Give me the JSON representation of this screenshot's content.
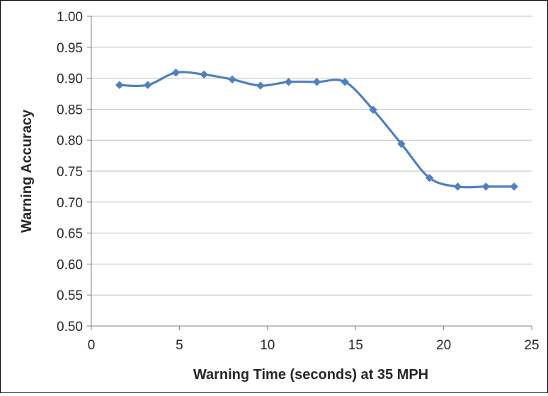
{
  "chart_data": {
    "type": "line",
    "title": "",
    "xlabel": "Warning Time (seconds) at 35 MPH",
    "ylabel": "Warning Accuracy",
    "xlim": [
      0,
      25
    ],
    "ylim": [
      0.5,
      1.0
    ],
    "x_ticks": [
      "0",
      "5",
      "10",
      "15",
      "20",
      "25"
    ],
    "y_ticks": [
      "0.50",
      "0.55",
      "0.60",
      "0.65",
      "0.70",
      "0.75",
      "0.80",
      "0.85",
      "0.90",
      "0.95",
      "1.00"
    ],
    "grid": "horizontal",
    "legend": "none",
    "series": [
      {
        "x": [
          1.6,
          3.2,
          4.8,
          6.4,
          8.0,
          9.6,
          11.2,
          12.8,
          14.4,
          16.0,
          17.6,
          19.2,
          20.8,
          22.4,
          24.0
        ],
        "values": [
          0.889,
          0.889,
          0.909,
          0.906,
          0.898,
          0.888,
          0.894,
          0.894,
          0.894,
          0.849,
          0.794,
          0.739,
          0.725,
          0.725,
          0.725
        ],
        "color": "#4F81BD",
        "marker": "diamond"
      }
    ]
  }
}
